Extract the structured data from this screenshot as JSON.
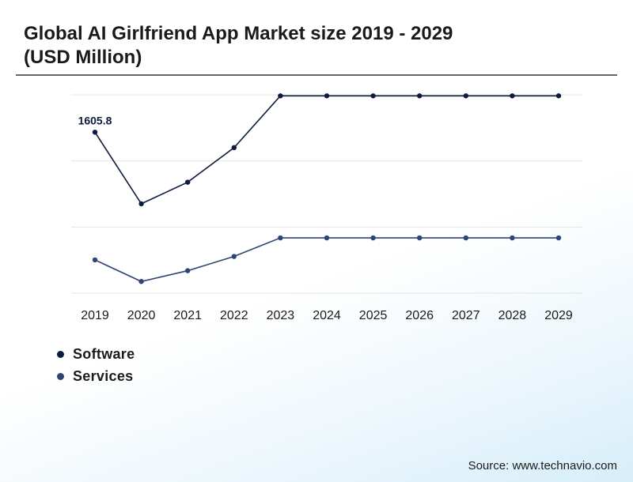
{
  "chart_data": {
    "type": "line",
    "title": "Global AI Girlfriend App Market size 2019 - 2029 (USD Million)",
    "categories": [
      "2019",
      "2020",
      "2021",
      "2022",
      "2023",
      "2024",
      "2025",
      "2026",
      "2027",
      "2028",
      "2029"
    ],
    "series": [
      {
        "name": "Software",
        "color": "#0d1b3e",
        "values": [
          1605.8,
          1440,
          1490,
          1570,
          1690,
          1690,
          1690,
          1690,
          1690,
          1690,
          1690
        ]
      },
      {
        "name": "Services",
        "color": "#2e4473",
        "values": [
          1310,
          1260,
          1285,
          1318,
          1361,
          1361,
          1361,
          1361,
          1361,
          1361,
          1361
        ]
      }
    ],
    "data_labels": [
      {
        "series": 0,
        "index": 0,
        "text": "1605.8"
      }
    ],
    "ylim": [
      1233,
      1696
    ],
    "y_axis_labels": false,
    "grid": true,
    "legend_position": "bottom-left"
  },
  "source": "Source: www.technavio.com"
}
